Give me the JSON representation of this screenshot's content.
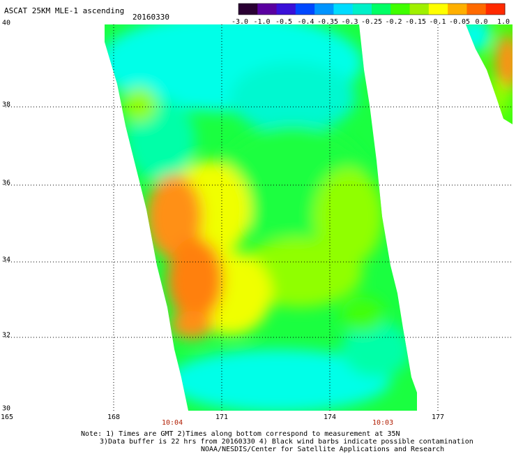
{
  "header": {
    "title": "ASCAT 25KM MLE-1 ascending",
    "date": "20160330"
  },
  "colorbar": {
    "labels": [
      "-3.0",
      "-1.0",
      "-0.5",
      "-0.4",
      "-0.35",
      "-0.3",
      "-0.25",
      "-0.2",
      "-0.15",
      "-0.1",
      "-0.05",
      "0.0",
      "1.0"
    ],
    "colors": [
      "#2a0033",
      "#5a00a0",
      "#3a10d8",
      "#0048ff",
      "#0094ff",
      "#00dcff",
      "#00f0c8",
      "#00ff66",
      "#40ff00",
      "#a0f000",
      "#ffff00",
      "#ffb000",
      "#ff6a00",
      "#ff2a00"
    ]
  },
  "axes": {
    "lat_labels": [
      "40",
      "38",
      "36",
      "34",
      "32",
      "30"
    ],
    "lon_labels": [
      "165",
      "168",
      "171",
      "174",
      "177"
    ]
  },
  "pass_times": [
    "10:04",
    "10:03"
  ],
  "footer": {
    "note1": "Note: 1) Times are GMT 2)Times along bottom correspond to measurement at 35N",
    "note2": "3)Data buffer is 22 hrs from 20160330 4) Black wind barbs indicate possible contamination",
    "credit": "NOAA/NESDIS/Center for Satellite Applications and Research"
  },
  "map_colors": {
    "cyan": "#00ffe8",
    "cyan2": "#00f8d0",
    "teal": "#00ffa8",
    "green": "#1aff40",
    "green2": "#40ff10",
    "lime": "#90ff00",
    "yellow": "#f0ff00",
    "orange": "#ff9018",
    "orange2": "#ff8010",
    "red": "#ff2000"
  }
}
